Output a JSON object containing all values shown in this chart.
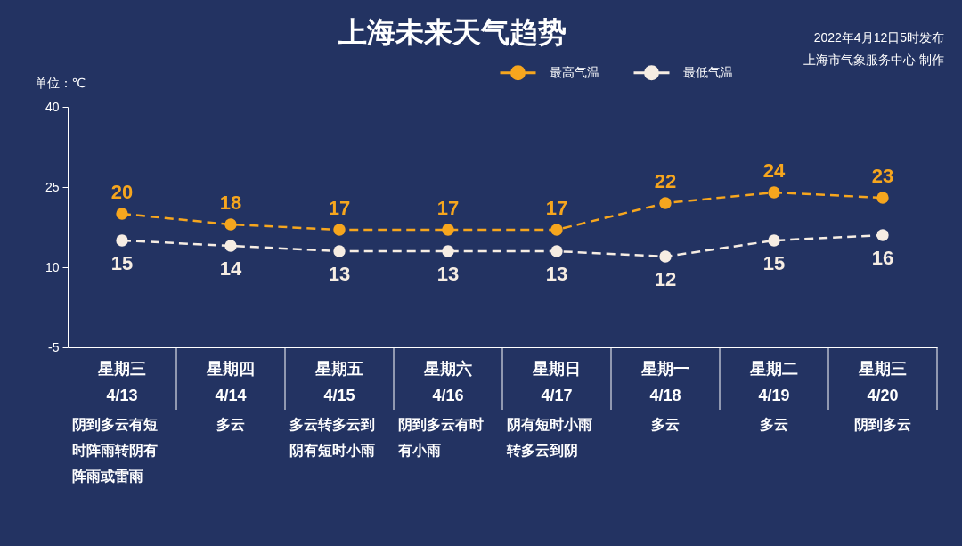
{
  "chart_data": {
    "type": "line",
    "title": "上海未来天气趋势",
    "ylabel": "单位：℃",
    "categories": [
      "星期三\n4/13",
      "星期四\n4/14",
      "星期五\n4/15",
      "星期六\n4/16",
      "星期日\n4/17",
      "星期一\n4/18",
      "星期二\n4/19",
      "星期三\n4/20"
    ],
    "series": [
      {
        "name": "最高气温",
        "color": "#f6a61e",
        "values": [
          20,
          18,
          17,
          17,
          17,
          22,
          24,
          23
        ]
      },
      {
        "name": "最低气温",
        "color": "#f6ede3",
        "values": [
          15,
          14,
          13,
          13,
          13,
          12,
          15,
          16
        ]
      }
    ],
    "ylim": [
      -5,
      40
    ],
    "yticks": [
      -5,
      10,
      25,
      40
    ],
    "legend": "top",
    "marker": "circle",
    "line_style": "dashed",
    "data_labels": true,
    "annotations": [
      "2022年4月12日5时发布",
      "上海市气象服务中心 制作",
      "阴到多云有短时阵雨转阴有阵雨或雷雨",
      "多云",
      "多云转多云到阴有短时小雨",
      "阴到多云有时有小雨",
      "阴有短时小雨转多云到阴",
      "多云",
      "多云",
      "阴到多云"
    ]
  }
}
